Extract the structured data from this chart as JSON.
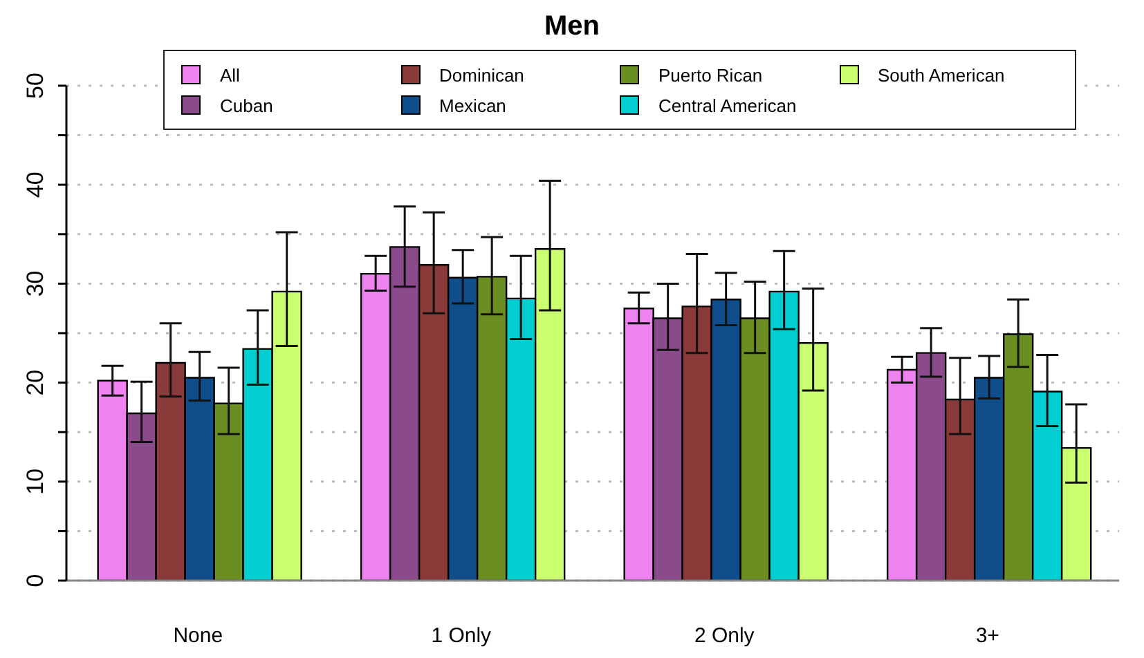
{
  "chart_data": {
    "type": "bar",
    "title": "Men",
    "categories": [
      "None",
      "1 Only",
      "2 Only",
      "3+"
    ],
    "series": [
      {
        "name": "All",
        "color": "#ee82ee",
        "values": [
          20.2,
          31.0,
          27.5,
          21.3
        ],
        "errors": [
          [
            18.7,
            21.7
          ],
          [
            29.3,
            32.8
          ],
          [
            26.0,
            29.1
          ],
          [
            20.0,
            22.6
          ]
        ]
      },
      {
        "name": "Cuban",
        "color": "#8b4a8b",
        "values": [
          16.9,
          33.7,
          26.5,
          23.0
        ],
        "errors": [
          [
            14.0,
            20.1
          ],
          [
            29.7,
            37.8
          ],
          [
            23.3,
            30.0
          ],
          [
            20.6,
            25.5
          ]
        ]
      },
      {
        "name": "Dominican",
        "color": "#8b3a3a",
        "values": [
          22.0,
          31.9,
          27.7,
          18.3
        ],
        "errors": [
          [
            18.6,
            26.0
          ],
          [
            27.0,
            37.2
          ],
          [
            23.0,
            33.0
          ],
          [
            14.8,
            22.5
          ]
        ]
      },
      {
        "name": "Mexican",
        "color": "#104e8b",
        "values": [
          20.5,
          30.6,
          28.4,
          20.5
        ],
        "errors": [
          [
            18.2,
            23.1
          ],
          [
            28.0,
            33.4
          ],
          [
            25.8,
            31.1
          ],
          [
            18.4,
            22.7
          ]
        ]
      },
      {
        "name": "Puerto Rican",
        "color": "#6b8e23",
        "values": [
          17.9,
          30.7,
          26.5,
          24.9
        ],
        "errors": [
          [
            14.8,
            21.5
          ],
          [
            26.9,
            34.7
          ],
          [
            23.0,
            30.2
          ],
          [
            21.6,
            28.4
          ]
        ]
      },
      {
        "name": "Central American",
        "color": "#00ced1",
        "values": [
          23.4,
          28.5,
          29.2,
          19.1
        ],
        "errors": [
          [
            19.8,
            27.3
          ],
          [
            24.4,
            32.8
          ],
          [
            25.4,
            33.3
          ],
          [
            15.6,
            22.8
          ]
        ]
      },
      {
        "name": "South American",
        "color": "#caff70",
        "values": [
          29.2,
          33.5,
          24.0,
          13.4
        ],
        "errors": [
          [
            23.7,
            35.2
          ],
          [
            27.3,
            40.4
          ],
          [
            19.2,
            29.5
          ],
          [
            9.9,
            17.8
          ]
        ]
      }
    ],
    "ylim": [
      0,
      50
    ],
    "yticks": [
      0,
      {
        "value": 5,
        "label": null
      },
      10,
      {
        "value": 15,
        "label": null
      },
      20,
      {
        "value": 25,
        "label": null
      },
      30,
      {
        "value": 35,
        "label": null
      },
      40,
      {
        "value": 45,
        "label": null
      },
      50
    ],
    "grid": "y",
    "legend": "top"
  }
}
